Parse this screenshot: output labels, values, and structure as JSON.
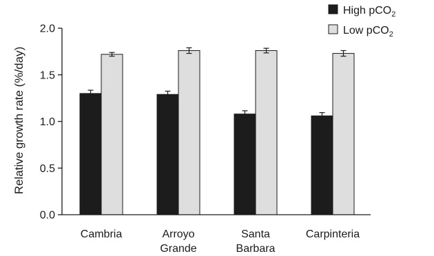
{
  "chart_data": {
    "type": "bar",
    "categories": [
      [
        "Cambria"
      ],
      [
        "Arroyo",
        "Grande"
      ],
      [
        "Santa",
        "Barbara"
      ],
      [
        "Carpinteria"
      ]
    ],
    "ylabel": "Relative growth rate (%/day)",
    "ylim": [
      0,
      2.0
    ],
    "yticks": [
      "0.0",
      "0.5",
      "1.0",
      "1.5",
      "2.0"
    ],
    "grid": false,
    "legend_position": "top-right",
    "series": [
      {
        "name_main": "High pCO",
        "name_sub": "2",
        "color": "#1c1c1c",
        "values": [
          1.3,
          1.29,
          1.08,
          1.06
        ],
        "errors": [
          0.035,
          0.035,
          0.035,
          0.035
        ]
      },
      {
        "name_main": "Low pCO",
        "name_sub": "2",
        "color": "#dedede",
        "values": [
          1.72,
          1.76,
          1.76,
          1.73
        ],
        "errors": [
          0.02,
          0.03,
          0.025,
          0.03
        ]
      }
    ]
  }
}
